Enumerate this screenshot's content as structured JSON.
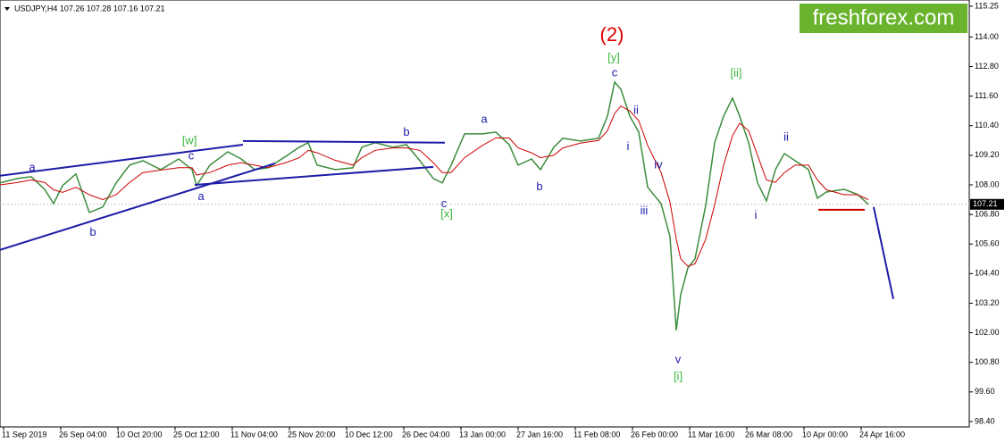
{
  "chart_data": {
    "type": "line",
    "title": "USDJPY,H4  107.26 107.28 107.16 107.21",
    "x": [
      0,
      20,
      35,
      50,
      60,
      70,
      85,
      100,
      115,
      130,
      145,
      160,
      180,
      200,
      215,
      220,
      235,
      255,
      270,
      285,
      300,
      320,
      335,
      345,
      355,
      375,
      395,
      405,
      420,
      440,
      455,
      470,
      485,
      495,
      505,
      520,
      540,
      555,
      570,
      580,
      595,
      605,
      620,
      630,
      650,
      670,
      680,
      688,
      695,
      705,
      715,
      725,
      740,
      750,
      757,
      762,
      770,
      778,
      790,
      800,
      810,
      820,
      828,
      838,
      848,
      858,
      868,
      878,
      890,
      905,
      915,
      925,
      945,
      960,
      972
    ],
    "series": [
      {
        "color": "#3c8c3c",
        "values": [
          108.08,
          108.26,
          108.33,
          107.82,
          107.24,
          107.97,
          108.44,
          106.88,
          107.1,
          108.08,
          108.8,
          108.98,
          108.62,
          109.05,
          108.62,
          107.97,
          108.8,
          109.34,
          109.05,
          108.62,
          108.69,
          109.16,
          109.53,
          109.71,
          108.8,
          108.62,
          108.69,
          109.53,
          109.71,
          109.53,
          109.63,
          108.98,
          108.26,
          108.08,
          108.8,
          110.07,
          110.07,
          110.14,
          109.63,
          108.8,
          109.05,
          108.62,
          109.53,
          109.89,
          109.78,
          109.89,
          110.79,
          112.17,
          111.88,
          110.79,
          110.14,
          107.9,
          107.24,
          105.9,
          102.1,
          103.55,
          104.63,
          105.0,
          107.17,
          109.71,
          110.79,
          111.52,
          110.79,
          109.71,
          108.08,
          107.35,
          108.62,
          109.27,
          108.98,
          108.62,
          107.46,
          107.71,
          107.82,
          107.61,
          107.21
        ]
      },
      {
        "color": "#cc0000",
        "values": [
          108.0,
          108.1,
          108.2,
          108.1,
          107.8,
          107.7,
          107.9,
          107.6,
          107.4,
          107.6,
          108.1,
          108.5,
          108.6,
          108.7,
          108.7,
          108.4,
          108.5,
          108.8,
          108.9,
          108.8,
          108.7,
          108.9,
          109.1,
          109.4,
          109.3,
          109.0,
          108.8,
          109.1,
          109.4,
          109.5,
          109.5,
          109.4,
          108.9,
          108.5,
          108.5,
          109.1,
          109.6,
          109.9,
          109.9,
          109.5,
          109.3,
          109.1,
          109.2,
          109.5,
          109.7,
          109.8,
          110.2,
          110.9,
          111.2,
          111.0,
          110.6,
          109.6,
          108.5,
          107.3,
          105.8,
          105.0,
          104.7,
          104.8,
          105.8,
          107.2,
          108.8,
          110.0,
          110.5,
          110.2,
          109.2,
          108.2,
          108.1,
          108.5,
          108.8,
          108.8,
          108.2,
          107.8,
          107.6,
          107.6,
          107.4
        ]
      }
    ],
    "xlim": [
      0,
      1085
    ],
    "ylim": [
      98.18,
      115.5
    ],
    "xticks": [
      {
        "value": 4,
        "label": "11 Sep 2019"
      },
      {
        "value": 68,
        "label": "26 Sep 04:00"
      },
      {
        "value": 132,
        "label": "10 Oct 20:00"
      },
      {
        "value": 196,
        "label": "25 Oct 12:00"
      },
      {
        "value": 260,
        "label": "11 Nov 04:00"
      },
      {
        "value": 324,
        "label": "25 Nov 20:00"
      },
      {
        "value": 388,
        "label": "10 Dec 12:00"
      },
      {
        "value": 452,
        "label": "26 Dec 04:00"
      },
      {
        "value": 516,
        "label": "13 Jan 00:00"
      },
      {
        "value": 580,
        "label": "27 Jan 16:00"
      },
      {
        "value": 644,
        "label": "11 Feb 08:00"
      },
      {
        "value": 708,
        "label": "26 Feb 00:00"
      },
      {
        "value": 772,
        "label": "11 Mar 16:00"
      },
      {
        "value": 836,
        "label": "26 Mar 08:00"
      },
      {
        "value": 900,
        "label": "10 Apr 00:00"
      },
      {
        "value": 964,
        "label": "24 Apr 16:00"
      }
    ],
    "yticks": [
      115.25,
      {
        "value": 114,
        "label": "114.00"
      },
      {
        "value": 112.8,
        "label": "112.80"
      },
      {
        "value": 111.6,
        "label": "111.60"
      },
      {
        "value": 110.4,
        "label": "110.40"
      },
      {
        "value": 109.2,
        "label": "109.20"
      },
      {
        "value": 108,
        "label": "108.00"
      },
      {
        "value": 106.8,
        "label": "106.80"
      },
      {
        "value": 105.6,
        "label": "105.60"
      },
      {
        "value": 104.4,
        "label": "104.40"
      },
      {
        "value": 103.2,
        "label": "103.20"
      },
      {
        "value": 102,
        "label": "102.00"
      },
      {
        "value": 100.8,
        "label": "100.80"
      },
      {
        "value": 99.6,
        "label": "99.60"
      },
      {
        "value": 98.4,
        "label": "98.40"
      }
    ],
    "current_price": 107.21,
    "lines": [
      {
        "color": "#1c1ca8",
        "x": [
          0,
          272
        ],
        "y": [
          108.37,
          109.63
        ]
      },
      {
        "color": "#1c1ca8",
        "x": [
          0,
          308
        ],
        "y": [
          105.36,
          108.87
        ]
      },
      {
        "color": "#1c1ca8",
        "x": [
          218,
          485
        ],
        "y": [
          108.0,
          108.73
        ]
      },
      {
        "color": "#1c1ca8",
        "x": [
          272,
          498
        ],
        "y": [
          109.78,
          109.71
        ]
      },
      {
        "color": "#1c1ca8",
        "x": [
          978,
          1000
        ],
        "y": [
          107.1,
          103.37
        ]
      },
      {
        "color": "#cc0000",
        "x": [
          916,
          968
        ],
        "y": [
          106.99,
          106.99
        ]
      }
    ],
    "annotations": [
      {
        "text": "a",
        "x": 36,
        "y": 108.69,
        "color": "#1c1ca8"
      },
      {
        "text": "b",
        "x": 104,
        "y": 106.05,
        "color": "#1c1ca8"
      },
      {
        "text": "[w]",
        "x": 212,
        "y": 109.78,
        "color": "#3cb83c"
      },
      {
        "text": "c",
        "x": 214,
        "y": 109.16,
        "color": "#1c1ca8"
      },
      {
        "text": "a",
        "x": 225,
        "y": 107.5,
        "color": "#1c1ca8"
      },
      {
        "text": "b",
        "x": 455,
        "y": 110.11,
        "color": "#1c1ca8"
      },
      {
        "text": "c",
        "x": 497,
        "y": 107.21,
        "color": "#1c1ca8"
      },
      {
        "text": "[x]",
        "x": 500,
        "y": 106.81,
        "color": "#3cb83c"
      },
      {
        "text": "a",
        "x": 542,
        "y": 110.65,
        "color": "#1c1ca8"
      },
      {
        "text": "b",
        "x": 604,
        "y": 107.9,
        "color": "#1c1ca8"
      },
      {
        "text": "c",
        "x": 688,
        "y": 112.53,
        "color": "#1c1ca8"
      },
      {
        "text": "[y]",
        "x": 687,
        "y": 113.15,
        "color": "#3cb83c"
      },
      {
        "text": "(2)",
        "x": 685,
        "y": 114.05,
        "color": "#e00000"
      },
      {
        "text": "ii",
        "x": 712,
        "y": 111.01,
        "color": "#1c1ca8"
      },
      {
        "text": "i",
        "x": 703,
        "y": 109.53,
        "color": "#1c1ca8"
      },
      {
        "text": "iv",
        "x": 737,
        "y": 108.8,
        "color": "#1c1ca8"
      },
      {
        "text": "iii",
        "x": 721,
        "y": 106.92,
        "color": "#1c1ca8"
      },
      {
        "text": "v",
        "x": 759,
        "y": 100.9,
        "color": "#1c1ca8"
      },
      {
        "text": "[i]",
        "x": 759,
        "y": 100.21,
        "color": "#3cb83c"
      },
      {
        "text": "[ii]",
        "x": 824,
        "y": 112.5,
        "color": "#3cb83c"
      },
      {
        "text": "ii",
        "x": 880,
        "y": 109.92,
        "color": "#1c1ca8"
      },
      {
        "text": "i",
        "x": 846,
        "y": 106.74,
        "color": "#1c1ca8"
      }
    ]
  },
  "logo": "freshforex.com"
}
